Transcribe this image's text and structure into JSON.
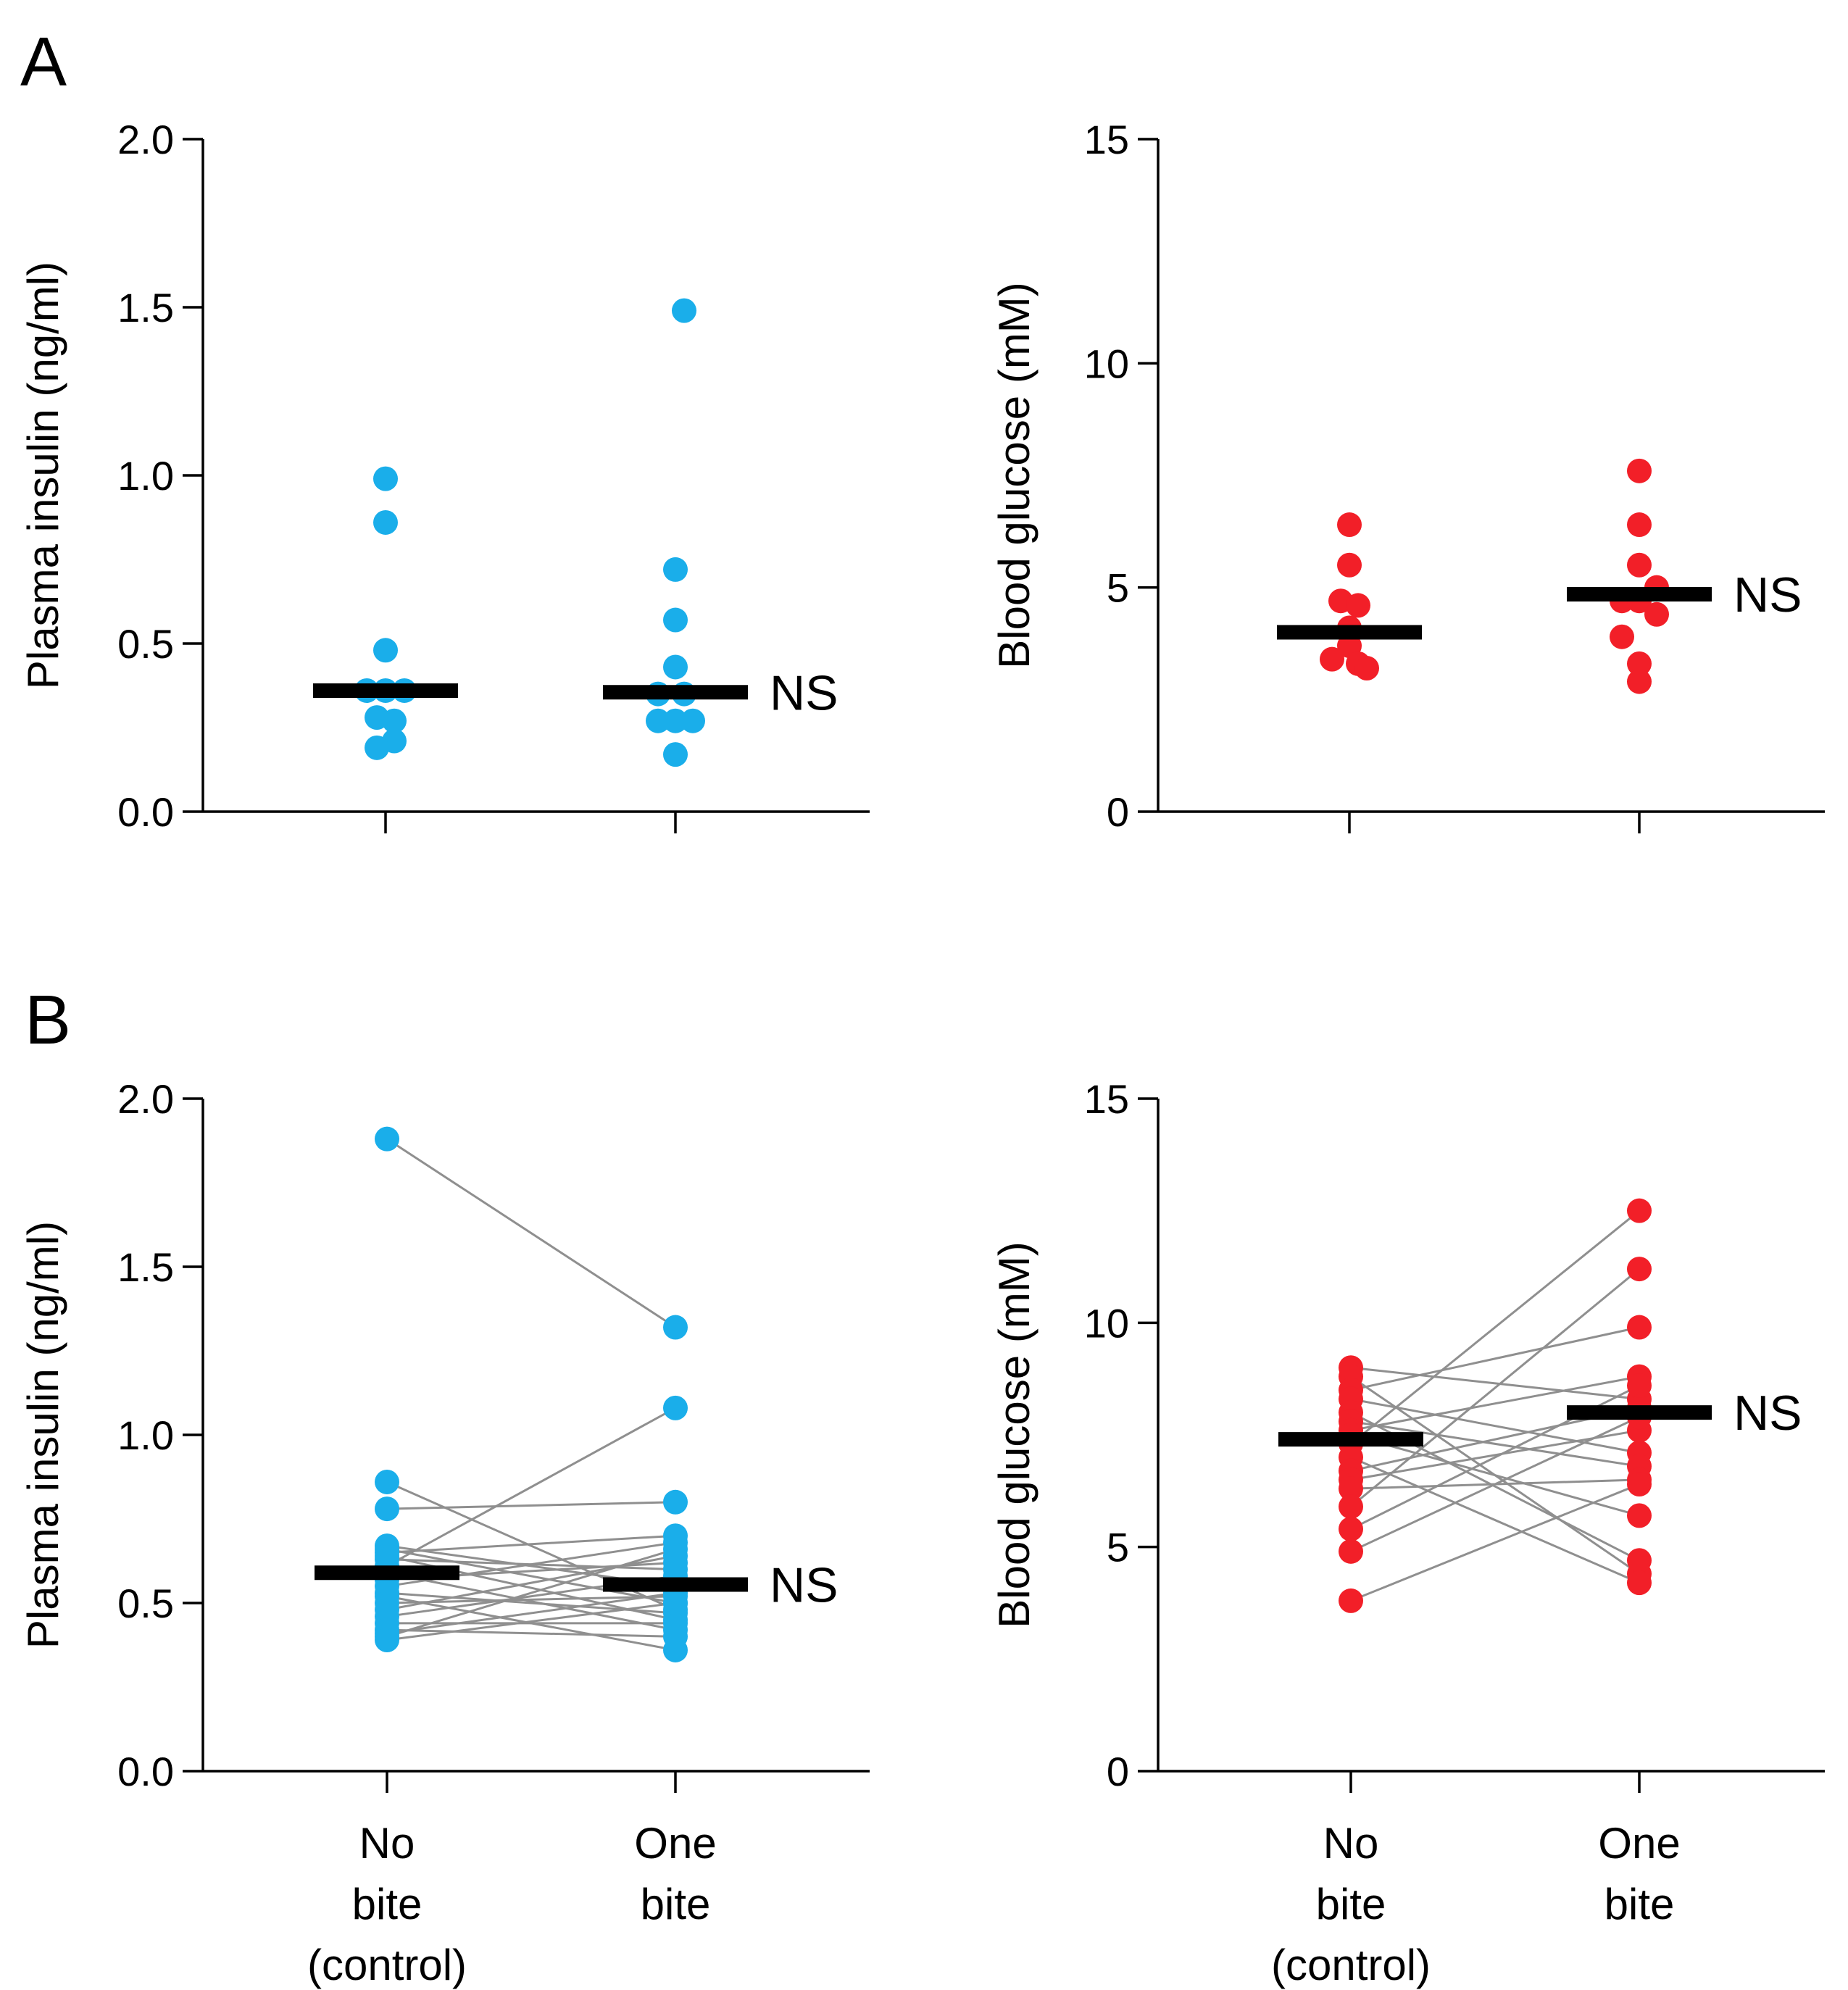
{
  "colors": {
    "insulin": "#1AAEEA",
    "glucose": "#F21F28",
    "line": "#8F8F8F"
  },
  "panel_labels": [
    "A",
    "B"
  ],
  "categories": [
    "No\nbite\n(control)",
    "One\nbite"
  ],
  "chart_data": [
    {
      "id": "A-insulin",
      "type": "scatter",
      "panel": "A",
      "ylabel": "Plasma insulin (ng/ml)",
      "ylim": [
        0,
        2.0
      ],
      "yticks": [
        "0.0",
        "0.5",
        "1.0",
        "1.5",
        "2.0"
      ],
      "ytick_values": [
        0,
        0.5,
        1.0,
        1.5,
        2.0
      ],
      "color_key": "insulin",
      "paired": false,
      "show_category_labels": false,
      "annotation": "NS",
      "series": [
        {
          "name": "No bite (control)",
          "mean": 0.36,
          "points": [
            0.99,
            0.86,
            0.48,
            0.36,
            0.36,
            0.36,
            0.28,
            0.27,
            0.21,
            0.19
          ],
          "offsets": [
            0,
            0,
            0,
            -1.3,
            0,
            1.3,
            -0.6,
            0.6,
            0.6,
            -0.6
          ]
        },
        {
          "name": "One bite",
          "mean": 0.355,
          "points": [
            1.49,
            0.72,
            0.57,
            0.43,
            0.35,
            0.35,
            0.27,
            0.27,
            0.27,
            0.17
          ],
          "offsets": [
            0.6,
            0,
            0,
            0,
            -1.2,
            0.6,
            -1.2,
            0,
            1.2,
            0
          ]
        }
      ]
    },
    {
      "id": "A-glucose",
      "type": "scatter",
      "panel": "A",
      "ylabel": "Blood glucose (mM)",
      "ylim": [
        0,
        15
      ],
      "yticks": [
        "0",
        "5",
        "10",
        "15"
      ],
      "ytick_values": [
        0,
        5,
        10,
        15
      ],
      "color_key": "glucose",
      "paired": false,
      "show_category_labels": false,
      "annotation": "NS",
      "series": [
        {
          "name": "No bite (control)",
          "mean": 4.0,
          "points": [
            6.4,
            5.5,
            4.7,
            4.6,
            4.1,
            3.7,
            3.4,
            3.3,
            3.2
          ],
          "offsets": [
            0,
            0,
            -0.6,
            0.6,
            0,
            0,
            -1.2,
            0.6,
            1.2
          ]
        },
        {
          "name": "One bite",
          "mean": 4.85,
          "points": [
            7.6,
            6.4,
            5.5,
            5.0,
            4.7,
            4.7,
            4.4,
            3.9,
            3.3,
            2.9
          ],
          "offsets": [
            0,
            0,
            0,
            1.2,
            -1.2,
            0,
            1.2,
            -1.2,
            0,
            0
          ]
        }
      ]
    },
    {
      "id": "B-insulin",
      "type": "scatter",
      "panel": "B",
      "ylabel": "Plasma insulin (ng/ml)",
      "ylim": [
        0,
        2.0
      ],
      "yticks": [
        "0.0",
        "0.5",
        "1.0",
        "1.5",
        "2.0"
      ],
      "ytick_values": [
        0,
        0.5,
        1.0,
        1.5,
        2.0
      ],
      "color_key": "insulin",
      "paired": true,
      "show_category_labels": true,
      "annotation": "NS",
      "series": [
        {
          "name": "No bite (control)",
          "mean": 0.59,
          "points": [
            1.88,
            0.86,
            0.78,
            0.67,
            0.66,
            0.65,
            0.64,
            0.63,
            0.61,
            0.59,
            0.57,
            0.55,
            0.53,
            0.52,
            0.5,
            0.48,
            0.46,
            0.44,
            0.42,
            0.41,
            0.4,
            0.39
          ]
        },
        {
          "name": "One bite",
          "mean": 0.555,
          "points": [
            1.32,
            0.48,
            0.8,
            0.55,
            0.5,
            0.7,
            0.45,
            0.6,
            1.08,
            0.42,
            0.62,
            0.68,
            0.47,
            0.36,
            0.52,
            0.64,
            0.58,
            0.44,
            0.4,
            0.53,
            0.66,
            0.5
          ]
        }
      ]
    },
    {
      "id": "B-glucose",
      "type": "scatter",
      "panel": "B",
      "ylabel": "Blood glucose (mM)",
      "ylim": [
        0,
        15
      ],
      "yticks": [
        "0",
        "5",
        "10",
        "15"
      ],
      "ytick_values": [
        0,
        5,
        10,
        15
      ],
      "color_key": "glucose",
      "paired": true,
      "show_category_labels": true,
      "annotation": "NS",
      "series": [
        {
          "name": "No bite (control)",
          "mean": 7.4,
          "points": [
            9.0,
            8.8,
            8.5,
            8.3,
            8.0,
            7.8,
            7.6,
            7.5,
            7.3,
            7.0,
            6.7,
            6.5,
            6.3,
            5.9,
            5.4,
            4.9,
            3.8
          ]
        },
        {
          "name": "One bite",
          "mean": 8.0,
          "points": [
            8.3,
            4.4,
            9.9,
            7.1,
            4.7,
            6.8,
            8.8,
            5.7,
            12.5,
            4.2,
            8.1,
            7.6,
            6.5,
            11.2,
            8.6,
            7.9,
            6.4
          ]
        }
      ]
    }
  ]
}
